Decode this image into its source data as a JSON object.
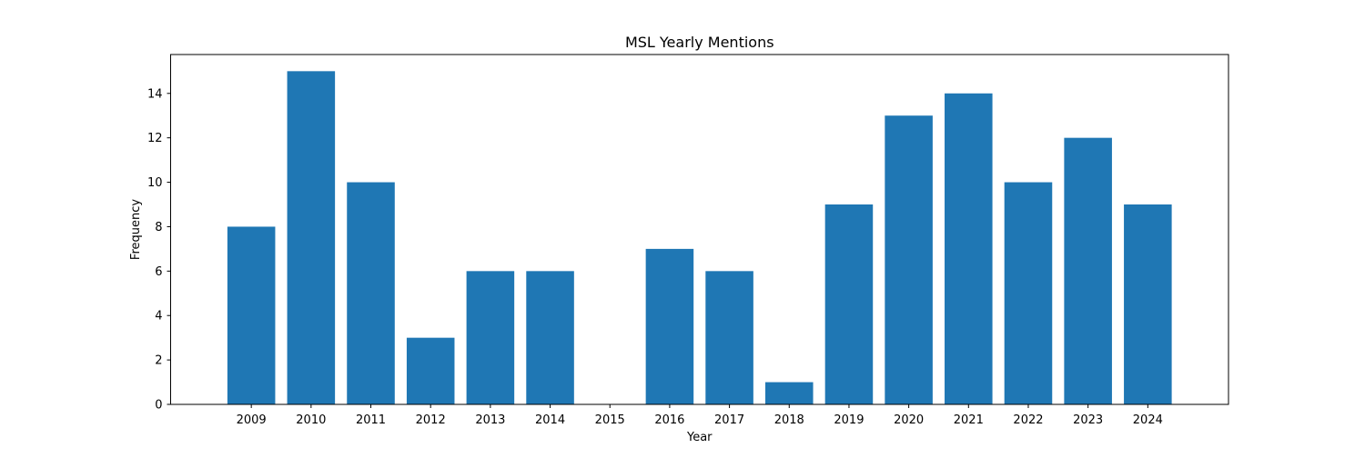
{
  "chart_data": {
    "type": "bar",
    "title": "MSL Yearly Mentions",
    "xlabel": "Year",
    "ylabel": "Frequency",
    "categories": [
      "2009",
      "2010",
      "2011",
      "2012",
      "2013",
      "2014",
      "2015",
      "2016",
      "2017",
      "2018",
      "2019",
      "2020",
      "2021",
      "2022",
      "2023",
      "2024"
    ],
    "values": [
      8,
      15,
      10,
      3,
      6,
      6,
      0,
      7,
      6,
      1,
      9,
      13,
      14,
      10,
      12,
      9
    ],
    "ylim": [
      0,
      15.75
    ],
    "yticks": [
      0,
      2,
      4,
      6,
      8,
      10,
      12,
      14
    ],
    "grid": false,
    "bar_color": "#1f77b4"
  }
}
